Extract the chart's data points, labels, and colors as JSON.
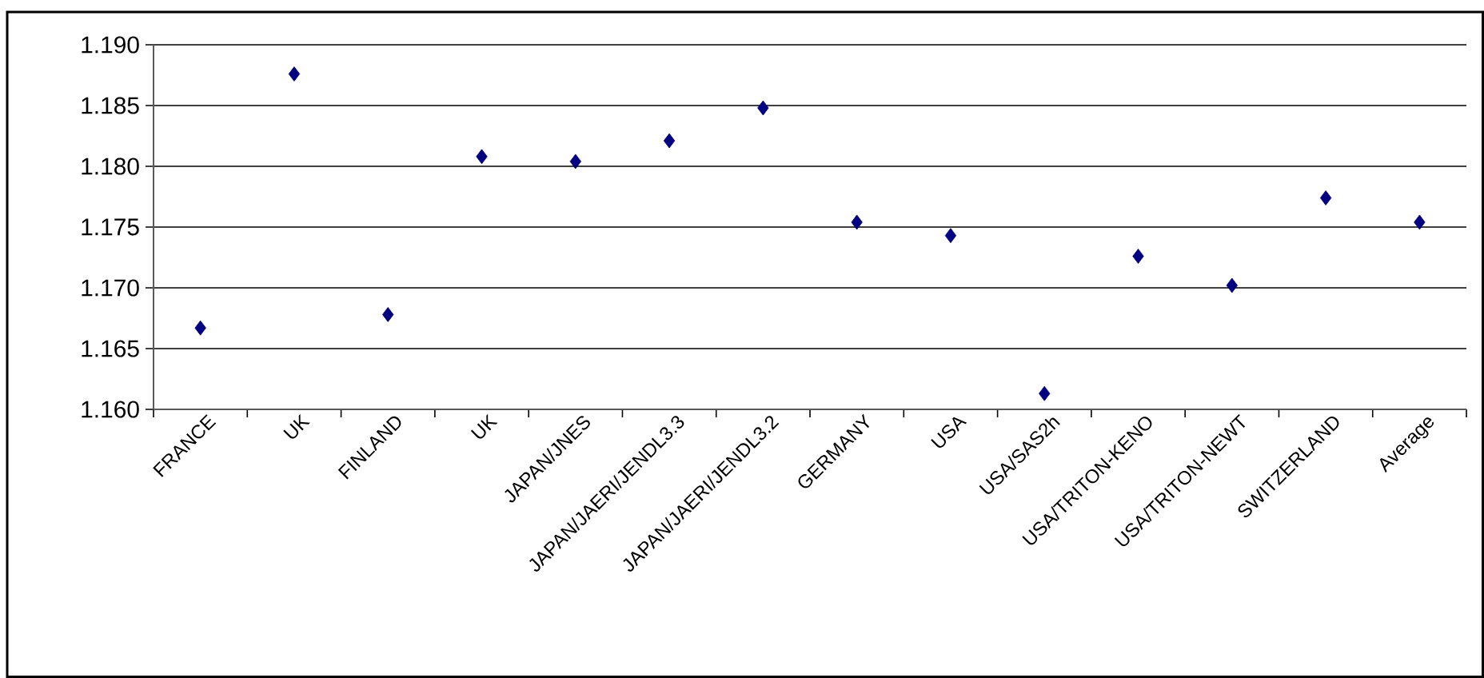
{
  "chart_data": {
    "type": "scatter",
    "categories": [
      "FRANCE",
      "UK",
      "FINLAND",
      "UK",
      "JAPAN/JNES",
      "JAPAN/JAERI/JENDL3.3",
      "JAPAN/JAERI/JENDL3.2",
      "GERMANY",
      "USA",
      "USA/SAS2h",
      "USA/TRITON-KENO",
      "USA/TRITON-NEWT",
      "SWITZERLAND",
      "Average"
    ],
    "series": [
      {
        "color": "#000080",
        "values": [
          1.1667,
          1.1876,
          1.1678,
          1.1808,
          1.1804,
          1.1821,
          1.1848,
          1.1754,
          1.1743,
          1.1613,
          1.1726,
          1.1702,
          1.1774,
          1.1754
        ]
      }
    ],
    "ylim": [
      1.16,
      1.19
    ],
    "yticks": [
      {
        "value": 1.16,
        "label": "1.160"
      },
      {
        "value": 1.165,
        "label": "1.165"
      },
      {
        "value": 1.17,
        "label": "1.170"
      },
      {
        "value": 1.175,
        "label": "1.175"
      },
      {
        "value": 1.18,
        "label": "1.180"
      },
      {
        "value": 1.185,
        "label": "1.185"
      },
      {
        "value": 1.19,
        "label": "1.190"
      }
    ],
    "grid": "y",
    "marker": "diamond"
  }
}
